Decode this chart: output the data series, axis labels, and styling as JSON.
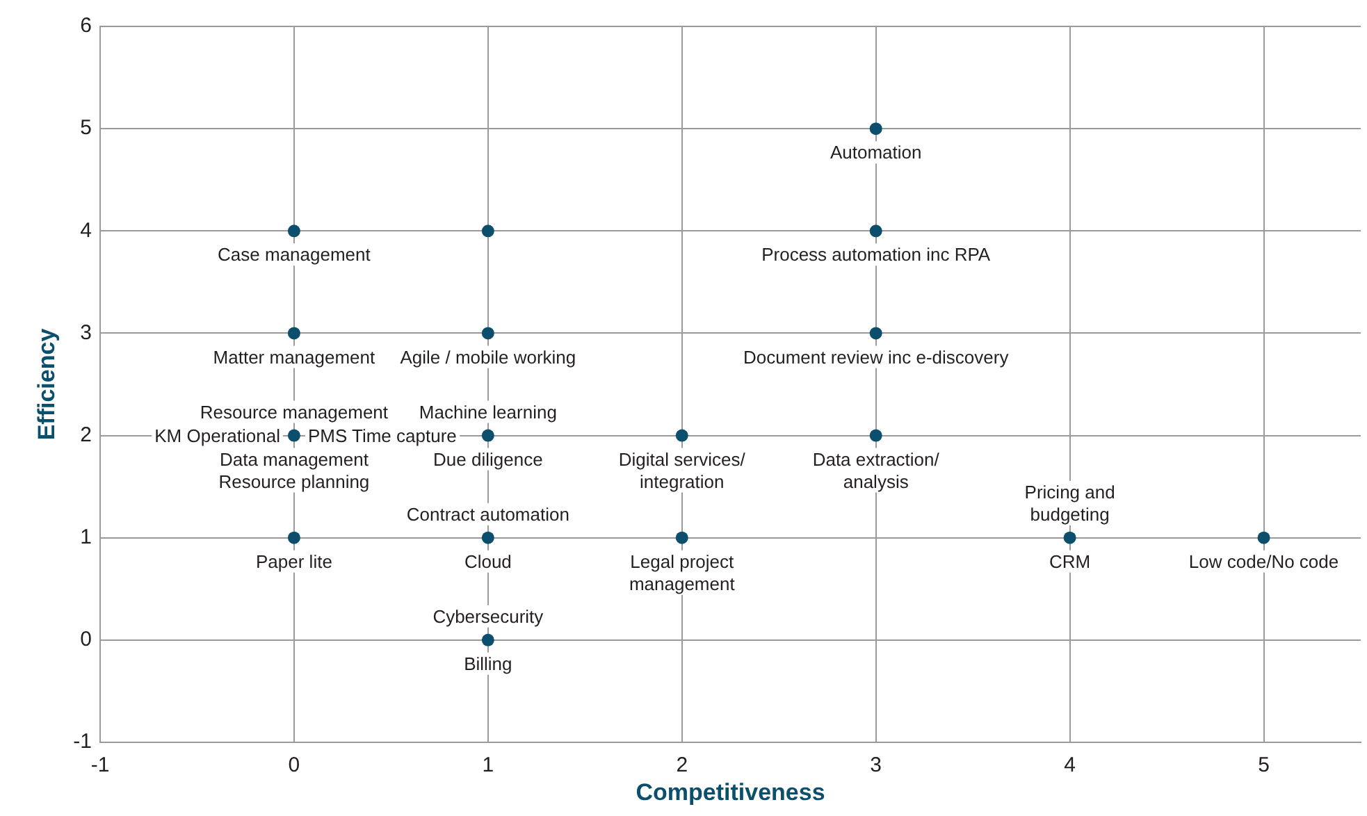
{
  "chart_data": {
    "type": "scatter",
    "xlabel": "Competitiveness",
    "ylabel": "Efficiency",
    "series": [
      {
        "color": "#0b4f6c",
        "x": [
          0,
          1,
          0,
          1,
          0,
          1,
          2,
          3,
          0,
          1,
          2,
          4,
          5,
          1,
          3,
          3,
          3
        ],
        "values": [
          4,
          4,
          3,
          3,
          2,
          2,
          2,
          2,
          1,
          1,
          1,
          1,
          1,
          0,
          5,
          4,
          3
        ]
      }
    ],
    "annotations": [
      {
        "text": "Case management",
        "x": 0,
        "y": 4
      },
      {
        "text": "Matter management",
        "x": 0,
        "y": 3
      },
      {
        "text": "Agile / mobile working",
        "x": 1,
        "y": 3
      },
      {
        "text": "Resource management",
        "x": 0,
        "y": 2
      },
      {
        "text": "KM Operational",
        "x": 0,
        "y": 2
      },
      {
        "text": "Data management",
        "x": 0,
        "y": 2
      },
      {
        "text": "PMS Time capture",
        "x": 0,
        "y": 2
      },
      {
        "text": "Resource planning",
        "x": 0,
        "y": 2
      },
      {
        "text": "Machine learning",
        "x": 1,
        "y": 2
      },
      {
        "text": "Due diligence",
        "x": 1,
        "y": 2
      },
      {
        "text": "Digital services/\nintegration",
        "x": 2,
        "y": 2
      },
      {
        "text": "Data extraction/\nanalysis",
        "x": 3,
        "y": 2
      },
      {
        "text": "Paper lite",
        "x": 0,
        "y": 1
      },
      {
        "text": "Contract automation",
        "x": 1,
        "y": 1
      },
      {
        "text": "Cloud",
        "x": 1,
        "y": 1
      },
      {
        "text": "Legal project\nmanagement",
        "x": 2,
        "y": 1
      },
      {
        "text": "Pricing and\nbudgeting",
        "x": 4,
        "y": 1
      },
      {
        "text": "CRM",
        "x": 4,
        "y": 1
      },
      {
        "text": "Low code/No code",
        "x": 5,
        "y": 1
      },
      {
        "text": "Cybersecurity",
        "x": 1,
        "y": 0
      },
      {
        "text": "Billing",
        "x": 1,
        "y": 0
      },
      {
        "text": "Automation",
        "x": 3,
        "y": 5
      },
      {
        "text": "Process automation inc RPA",
        "x": 3,
        "y": 4
      },
      {
        "text": "Document review inc e-discovery",
        "x": 3,
        "y": 3
      }
    ],
    "xlim": [
      -1,
      5.5
    ],
    "ylim": [
      -1,
      6
    ],
    "xticks": [
      -1,
      0,
      1,
      2,
      3,
      4,
      5
    ],
    "yticks": [
      -1,
      0,
      1,
      2,
      3,
      4,
      5,
      6
    ],
    "grid": true,
    "marker": "circle"
  }
}
